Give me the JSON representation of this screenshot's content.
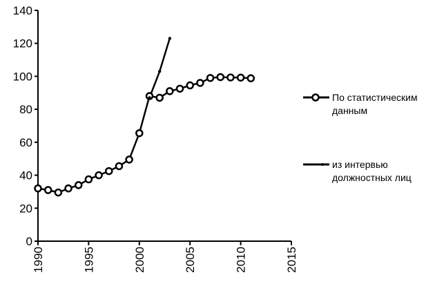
{
  "chart_data": {
    "type": "line",
    "title": "",
    "xlabel": "",
    "ylabel": "",
    "xlim": [
      1990,
      2015
    ],
    "ylim": [
      0,
      140
    ],
    "xticks": [
      "1990",
      "1995",
      "2000",
      "2005",
      "2010",
      "2015"
    ],
    "yticks": [
      "0",
      "20",
      "40",
      "60",
      "80",
      "100",
      "120",
      "140"
    ],
    "grid": false,
    "legend_position": "right",
    "series": [
      {
        "name": "По статистическим данным",
        "marker": "open-circle",
        "color": "#000000",
        "x": [
          1990,
          1991,
          1992,
          1993,
          1994,
          1995,
          1996,
          1997,
          1998,
          1999,
          2000,
          2001,
          2002,
          2003,
          2004,
          2005,
          2006,
          2007,
          2008,
          2009,
          2010,
          2011
        ],
        "y": [
          32,
          31,
          29.5,
          32,
          34,
          37.5,
          40,
          42.5,
          45.5,
          49.5,
          65.5,
          88,
          87,
          91,
          92.5,
          94.5,
          96,
          99,
          99.5,
          99.3,
          99.2,
          98.8
        ]
      },
      {
        "name": "из интервью должностных лиц",
        "marker": "small-dot",
        "color": "#000000",
        "x": [
          2001,
          2002,
          2003
        ],
        "y": [
          87,
          103,
          123
        ]
      }
    ]
  }
}
